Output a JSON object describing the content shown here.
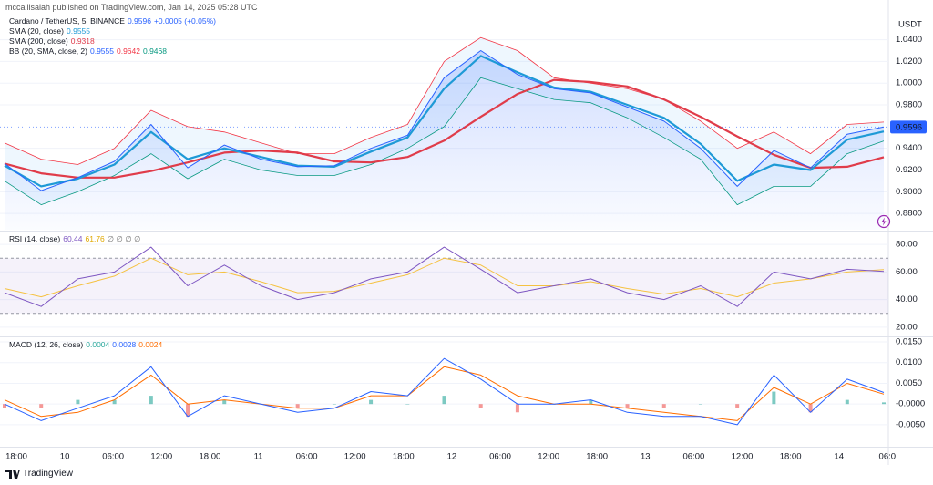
{
  "header": {
    "text": "mccallisalah published on TradingView.com, Jan 14, 2025 05:28 UTC"
  },
  "footer": {
    "brand": "TradingView"
  },
  "time_labels": [
    "18:00",
    "10",
    "06:00",
    "12:00",
    "18:00",
    "11",
    "06:00",
    "12:00",
    "18:00",
    "12",
    "06:00",
    "12:00",
    "18:00",
    "13",
    "06:00",
    "12:00",
    "18:00",
    "14",
    "06:0"
  ],
  "chart_data": [
    {
      "type": "line",
      "unit": "USDT",
      "change": "+0.0005 (+0.05%)",
      "ylim": [
        0.865,
        1.064
      ],
      "yticks": [
        {
          "value": 1.04,
          "label": "1.0400"
        },
        {
          "value": 1.02,
          "label": "1.0200"
        },
        {
          "value": 1.0,
          "label": "1.0000"
        },
        {
          "value": 0.98,
          "label": "0.9800"
        },
        {
          "value": 0.94,
          "label": "0.9400"
        },
        {
          "value": 0.92,
          "label": "0.9200"
        },
        {
          "value": 0.9,
          "label": "0.9000"
        },
        {
          "value": 0.88,
          "label": "0.8800"
        }
      ],
      "series": [
        {
          "name": "Cardano / TetherUS, 5, BINANCE",
          "color": "#2962ff",
          "values": [
            0.926,
            0.901,
            0.913,
            0.928,
            0.962,
            0.922,
            0.943,
            0.93,
            0.923,
            0.924,
            0.94,
            0.952,
            1.005,
            1.03,
            1.008,
            0.995,
            0.991,
            0.978,
            0.965,
            0.94,
            0.905,
            0.938,
            0.922,
            0.953,
            0.9596
          ]
        },
        {
          "name": "SMA (20, close)",
          "color": "#1e9ad6",
          "values": [
            0.924,
            0.905,
            0.912,
            0.925,
            0.955,
            0.93,
            0.94,
            0.932,
            0.924,
            0.923,
            0.937,
            0.95,
            0.995,
            1.025,
            1.01,
            0.996,
            0.992,
            0.98,
            0.968,
            0.944,
            0.91,
            0.925,
            0.92,
            0.948,
            0.9555
          ]
        },
        {
          "name": "SMA (200, close)",
          "color": "#e03c4a",
          "values": [
            0.926,
            0.917,
            0.913,
            0.913,
            0.919,
            0.927,
            0.936,
            0.938,
            0.936,
            0.928,
            0.927,
            0.932,
            0.947,
            0.969,
            0.99,
            1.003,
            1.001,
            0.997,
            0.985,
            0.969,
            0.951,
            0.934,
            0.922,
            0.923,
            0.9318
          ]
        }
      ],
      "bb": {
        "name": "BB (20, SMA, close, 2)",
        "upper_color": "#f23645",
        "lower_color": "#089981",
        "upper": [
          0.945,
          0.93,
          0.925,
          0.94,
          0.975,
          0.96,
          0.955,
          0.945,
          0.935,
          0.935,
          0.95,
          0.962,
          1.02,
          1.042,
          1.03,
          1.005,
          1.0,
          0.995,
          0.985,
          0.965,
          0.94,
          0.955,
          0.935,
          0.962,
          0.9642
        ],
        "lower": [
          0.91,
          0.888,
          0.9,
          0.915,
          0.935,
          0.912,
          0.93,
          0.92,
          0.915,
          0.915,
          0.925,
          0.94,
          0.96,
          1.005,
          0.995,
          0.985,
          0.982,
          0.968,
          0.95,
          0.93,
          0.888,
          0.905,
          0.905,
          0.935,
          0.9468
        ]
      }
    },
    {
      "type": "line",
      "extra": "∅ ∅ ∅ ∅",
      "ylim": [
        14,
        88
      ],
      "yticks": [
        {
          "value": 80,
          "label": "80.00"
        },
        {
          "value": 60,
          "label": "60.00"
        },
        {
          "value": 40,
          "label": "40.00"
        },
        {
          "value": 20,
          "label": "20.00"
        }
      ],
      "band": [
        30,
        70
      ],
      "series": [
        {
          "name": "RSI (14, close)",
          "color": "#7e57c2",
          "values": [
            45,
            35,
            55,
            60,
            78,
            50,
            65,
            50,
            40,
            45,
            55,
            60,
            78,
            62,
            45,
            50,
            55,
            45,
            40,
            50,
            35,
            60,
            55,
            62,
            60.44
          ]
        },
        {
          "color": "#f5c242",
          "values": [
            48,
            42,
            50,
            57,
            70,
            58,
            60,
            53,
            45,
            46,
            52,
            58,
            70,
            65,
            50,
            50,
            53,
            48,
            44,
            48,
            42,
            52,
            55,
            60,
            61.76
          ]
        }
      ]
    },
    {
      "type": "line",
      "name": "MACD (12, 26, close)",
      "ylim": [
        -0.0103,
        0.0161
      ],
      "yticks": [
        {
          "value": 0.015,
          "label": "0.0150"
        },
        {
          "value": 0.01,
          "label": "0.0100"
        },
        {
          "value": 0.005,
          "label": "0.0050"
        },
        {
          "value": 0,
          "label": "-0.0000"
        },
        {
          "value": -0.005,
          "label": "-0.0050"
        }
      ],
      "histogram": {
        "up_color": "#26a69a",
        "down_color": "#ef5350",
        "values": [
          -0.001,
          -0.001,
          0.001,
          0.001,
          0.002,
          -0.003,
          0.001,
          0,
          -0.001,
          0,
          0.001,
          0,
          0.002,
          -0.001,
          -0.002,
          0,
          0.001,
          -0.001,
          -0.001,
          0,
          -0.001,
          0.003,
          -0.002,
          0.001,
          0.0004
        ]
      },
      "series": [
        {
          "color": "#2962ff",
          "values": [
            0,
            -0.004,
            -0.001,
            0.002,
            0.009,
            -0.003,
            0.002,
            0.0,
            -0.002,
            -0.001,
            0.003,
            0.002,
            0.011,
            0.006,
            0.0,
            0.0,
            0.001,
            -0.002,
            -0.003,
            -0.003,
            -0.005,
            0.007,
            -0.002,
            0.006,
            0.0028
          ]
        },
        {
          "color": "#ff6d00",
          "values": [
            0.001,
            -0.003,
            -0.002,
            0.001,
            0.007,
            0.0,
            0.001,
            0.0,
            -0.001,
            -0.001,
            0.002,
            0.002,
            0.009,
            0.007,
            0.002,
            0.0,
            0.0,
            -0.001,
            -0.002,
            -0.003,
            -0.004,
            0.004,
            0.0,
            0.005,
            0.0024
          ]
        }
      ]
    }
  ]
}
